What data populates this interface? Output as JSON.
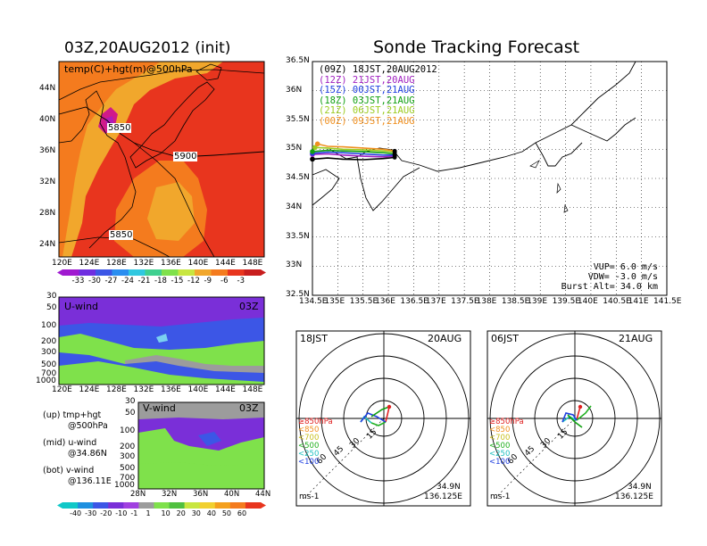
{
  "colors": {
    "map_red": "#e8351e",
    "map_orange": "#f47b1e",
    "map_dorange": "#f1a72c",
    "wind_purple": "#7a2fd8",
    "wind_blue": "#3c56e6",
    "wind_green": "#7fe14b",
    "wind_gray": "#9c9c9c"
  },
  "left": {
    "title": "03Z,20AUG2012 (init)",
    "map_label": "temp(C)+hgt(m)@500hPa",
    "contours": [
      "5850",
      "5900",
      "5850"
    ],
    "lat_ticks": [
      "44N",
      "40N",
      "36N",
      "32N",
      "28N",
      "24N"
    ],
    "lon_ticks": [
      "120E",
      "124E",
      "128E",
      "132E",
      "136E",
      "140E",
      "144E",
      "148E"
    ],
    "colorbar_labels": [
      "-33",
      "-30",
      "-27",
      "-24",
      "-21",
      "-18",
      "-15",
      "-12",
      "-9",
      "-6",
      "-3"
    ],
    "u_panel": {
      "title": "U-wind",
      "time": "03Z",
      "p_ticks": [
        "30",
        "50",
        "100",
        "200",
        "300",
        "500",
        "700",
        "1000"
      ],
      "lon_ticks": [
        "120E",
        "124E",
        "128E",
        "132E",
        "136E",
        "140E",
        "144E",
        "148E"
      ]
    },
    "v_panel": {
      "title": "V-wind",
      "time": "03Z",
      "p_ticks": [
        "30",
        "50",
        "100",
        "200",
        "300",
        "500",
        "700",
        "1000"
      ],
      "lat_ticks": [
        "28N",
        "32N",
        "36N",
        "40N",
        "44N"
      ]
    },
    "notes": [
      {
        "a": "(up) tmp+hgt",
        "b": "@500hPa"
      },
      {
        "a": "(mid) u-wind",
        "b": "@34.86N"
      },
      {
        "a": "(bot) v-wind",
        "b": "@136.11E"
      }
    ],
    "wind_colorbar_labels": [
      "-40",
      "-30",
      "-20",
      "-10",
      "-1",
      "1",
      "10",
      "20",
      "30",
      "40",
      "50",
      "60"
    ]
  },
  "right": {
    "title": "Sonde Tracking Forecast",
    "lat_ticks": [
      "36.5N",
      "36N",
      "35.5N",
      "35N",
      "34.5N",
      "34N",
      "33.5N",
      "33N",
      "32.5N"
    ],
    "lon_ticks": [
      "134.5E",
      "135E",
      "135.5E",
      "136E",
      "136.5E",
      "137E",
      "137.5E",
      "138E",
      "138.5E",
      "139E",
      "139.5E",
      "140E",
      "140.5E",
      "141E",
      "141.5E"
    ],
    "legend": [
      {
        "text": "(09Z) 18JST,20AUG2012",
        "color": "#000000"
      },
      {
        "text": "(12Z) 21JST,20AUG",
        "color": "#a020c0"
      },
      {
        "text": "(15Z) 00JST,21AUG",
        "color": "#2040e0"
      },
      {
        "text": "(18Z) 03JST,21AUG",
        "color": "#10a010"
      },
      {
        "text": "(21Z) 06JST,21AUG",
        "color": "#9ccc20"
      },
      {
        "text": "(00Z) 09JST,21AUG",
        "color": "#f09020"
      }
    ],
    "params": [
      "VUP=  6.0  m/s",
      "VDW= -3.0  m/s",
      "Burst Alt=  34.0  km"
    ],
    "hodo_left": {
      "time": "18JST",
      "date": "20AUG",
      "rings": [
        "15",
        "30",
        "45",
        "60"
      ],
      "unit": "ms-1",
      "lat": "34.9N",
      "lon": "136.125E"
    },
    "hodo_right": {
      "time": "06JST",
      "date": "21AUG",
      "rings": [
        "15",
        "30",
        "45",
        "60"
      ],
      "unit": "ms-1",
      "lat": "34.9N",
      "lon": "136.125E"
    },
    "hodo_legend": [
      {
        "text": "≥850hPa",
        "color": "#e02020"
      },
      {
        "text": "<850",
        "color": "#f09020"
      },
      {
        "text": "<700",
        "color": "#c8c020"
      },
      {
        "text": "<500",
        "color": "#20b020"
      },
      {
        "text": "<250",
        "color": "#20c0c0"
      },
      {
        "text": "<100",
        "color": "#2040e0"
      }
    ]
  },
  "chart_data": [
    {
      "type": "heatmap",
      "title": "03Z,20AUG2012 (init)",
      "subtitle": "temp(C)+hgt(m)@500hPa",
      "xlim": [
        "120E",
        "150E"
      ],
      "ylim": [
        "22N",
        "47N"
      ],
      "colorbar": [
        -33,
        -30,
        -27,
        -24,
        -21,
        -18,
        -15,
        -12,
        -9,
        -6,
        -3
      ],
      "contour_labels": [
        5850,
        5900,
        5850
      ]
    },
    {
      "type": "heatmap",
      "title": "U-wind",
      "xlim": [
        "120E",
        "150E"
      ],
      "ylim": [
        1000,
        30
      ],
      "colorbar": [
        -40,
        -30,
        -20,
        -10,
        -1,
        1,
        10,
        20,
        30,
        40,
        50,
        60
      ]
    },
    {
      "type": "heatmap",
      "title": "V-wind",
      "xlim": [
        "28N",
        "44N"
      ],
      "ylim": [
        1000,
        30
      ],
      "colorbar": [
        -40,
        -30,
        -20,
        -10,
        -1,
        1,
        10,
        20,
        30,
        40,
        50,
        60
      ]
    },
    {
      "type": "line",
      "title": "Sonde Tracking Forecast",
      "xlim": [
        134.5,
        141.5
      ],
      "ylim": [
        32.5,
        36.5
      ],
      "series": [
        {
          "name": "(09Z) 18JST,20AUG2012",
          "x": [
            136.125,
            135.9,
            135.5,
            135.1,
            134.8,
            134.5
          ],
          "y": [
            34.86,
            34.84,
            34.82,
            34.83,
            34.85,
            34.83
          ]
        },
        {
          "name": "(12Z) 21JST,20AUG",
          "x": [
            136.125,
            135.9,
            135.5,
            135.1,
            134.8,
            134.5
          ],
          "y": [
            34.88,
            34.87,
            34.88,
            34.9,
            34.92,
            34.91
          ]
        },
        {
          "name": "(15Z) 00JST,21AUG",
          "x": [
            136.125,
            135.9,
            135.5,
            135.1,
            134.8,
            134.5
          ],
          "y": [
            34.9,
            34.9,
            34.92,
            34.94,
            34.95,
            34.93
          ]
        },
        {
          "name": "(18Z) 03JST,21AUG",
          "x": [
            136.125,
            135.9,
            135.5,
            135.1,
            134.8,
            134.5
          ],
          "y": [
            34.92,
            34.94,
            34.96,
            34.97,
            34.98,
            34.96
          ]
        },
        {
          "name": "(21Z) 06JST,21AUG",
          "x": [
            136.125,
            135.9,
            135.5,
            135.1,
            134.8,
            134.55
          ],
          "y": [
            34.95,
            34.97,
            34.99,
            35.0,
            35.02,
            35.03
          ]
        },
        {
          "name": "(00Z) 09JST,21AUG",
          "x": [
            136.125,
            135.9,
            135.5,
            135.1,
            134.8,
            134.6
          ],
          "y": [
            34.97,
            35.0,
            35.02,
            35.04,
            35.05,
            35.09
          ]
        }
      ]
    }
  ]
}
